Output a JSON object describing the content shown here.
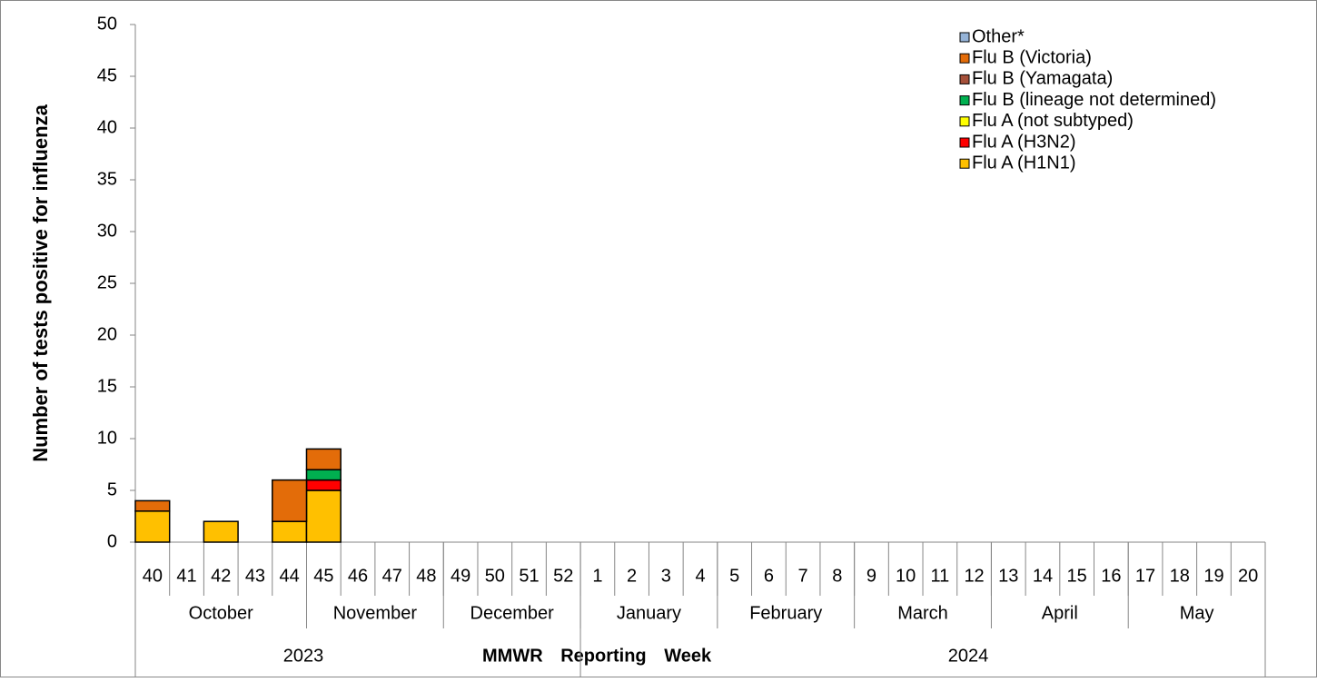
{
  "chart_data": {
    "type": "stacked-bar",
    "ylabel": "Number of tests positive for influenza",
    "xlabel": "MMWR Reporting Week",
    "categories": [
      "40",
      "41",
      "42",
      "43",
      "44",
      "45",
      "46",
      "47",
      "48",
      "49",
      "50",
      "51",
      "52",
      "1",
      "2",
      "3",
      "4",
      "5",
      "6",
      "7",
      "8",
      "9",
      "10",
      "11",
      "12",
      "13",
      "14",
      "15",
      "16",
      "17",
      "18",
      "19",
      "20"
    ],
    "months": [
      "October",
      "November",
      "December",
      "January",
      "February",
      "March",
      "April",
      "May"
    ],
    "years": [
      "2023",
      "2024"
    ],
    "ylim": [
      0,
      50
    ],
    "yticks": [
      0,
      5,
      10,
      15,
      20,
      25,
      30,
      35,
      40,
      45,
      50
    ],
    "series": [
      {
        "name": "Flu A (H1N1)",
        "color": "#ffc000",
        "values": [
          3,
          0,
          2,
          0,
          2,
          5,
          0,
          0,
          0,
          0,
          0,
          0,
          0,
          0,
          0,
          0,
          0,
          0,
          0,
          0,
          0,
          0,
          0,
          0,
          0,
          0,
          0,
          0,
          0,
          0,
          0,
          0,
          0
        ]
      },
      {
        "name": "Flu A (H3N2)",
        "color": "#ff0000",
        "values": [
          0,
          0,
          0,
          0,
          0,
          1,
          0,
          0,
          0,
          0,
          0,
          0,
          0,
          0,
          0,
          0,
          0,
          0,
          0,
          0,
          0,
          0,
          0,
          0,
          0,
          0,
          0,
          0,
          0,
          0,
          0,
          0,
          0
        ]
      },
      {
        "name": "Flu A (not subtyped)",
        "color": "#ffff00",
        "values": [
          0,
          0,
          0,
          0,
          0,
          0,
          0,
          0,
          0,
          0,
          0,
          0,
          0,
          0,
          0,
          0,
          0,
          0,
          0,
          0,
          0,
          0,
          0,
          0,
          0,
          0,
          0,
          0,
          0,
          0,
          0,
          0,
          0
        ]
      },
      {
        "name": "Flu B (lineage not determined)",
        "color": "#00b050",
        "values": [
          0,
          0,
          0,
          0,
          0,
          1,
          0,
          0,
          0,
          0,
          0,
          0,
          0,
          0,
          0,
          0,
          0,
          0,
          0,
          0,
          0,
          0,
          0,
          0,
          0,
          0,
          0,
          0,
          0,
          0,
          0,
          0,
          0
        ]
      },
      {
        "name": "Flu B (Yamagata)",
        "color": "#a5503a",
        "values": [
          0,
          0,
          0,
          0,
          0,
          0,
          0,
          0,
          0,
          0,
          0,
          0,
          0,
          0,
          0,
          0,
          0,
          0,
          0,
          0,
          0,
          0,
          0,
          0,
          0,
          0,
          0,
          0,
          0,
          0,
          0,
          0,
          0
        ]
      },
      {
        "name": "Flu B (Victoria)",
        "color": "#e36c09",
        "values": [
          1,
          0,
          0,
          0,
          4,
          2,
          0,
          0,
          0,
          0,
          0,
          0,
          0,
          0,
          0,
          0,
          0,
          0,
          0,
          0,
          0,
          0,
          0,
          0,
          0,
          0,
          0,
          0,
          0,
          0,
          0,
          0,
          0
        ]
      },
      {
        "name": "Other*",
        "color": "#95b3d7",
        "values": [
          0,
          0,
          0,
          0,
          0,
          0,
          0,
          0,
          0,
          0,
          0,
          0,
          0,
          0,
          0,
          0,
          0,
          0,
          0,
          0,
          0,
          0,
          0,
          0,
          0,
          0,
          0,
          0,
          0,
          0,
          0,
          0,
          0
        ]
      }
    ]
  }
}
